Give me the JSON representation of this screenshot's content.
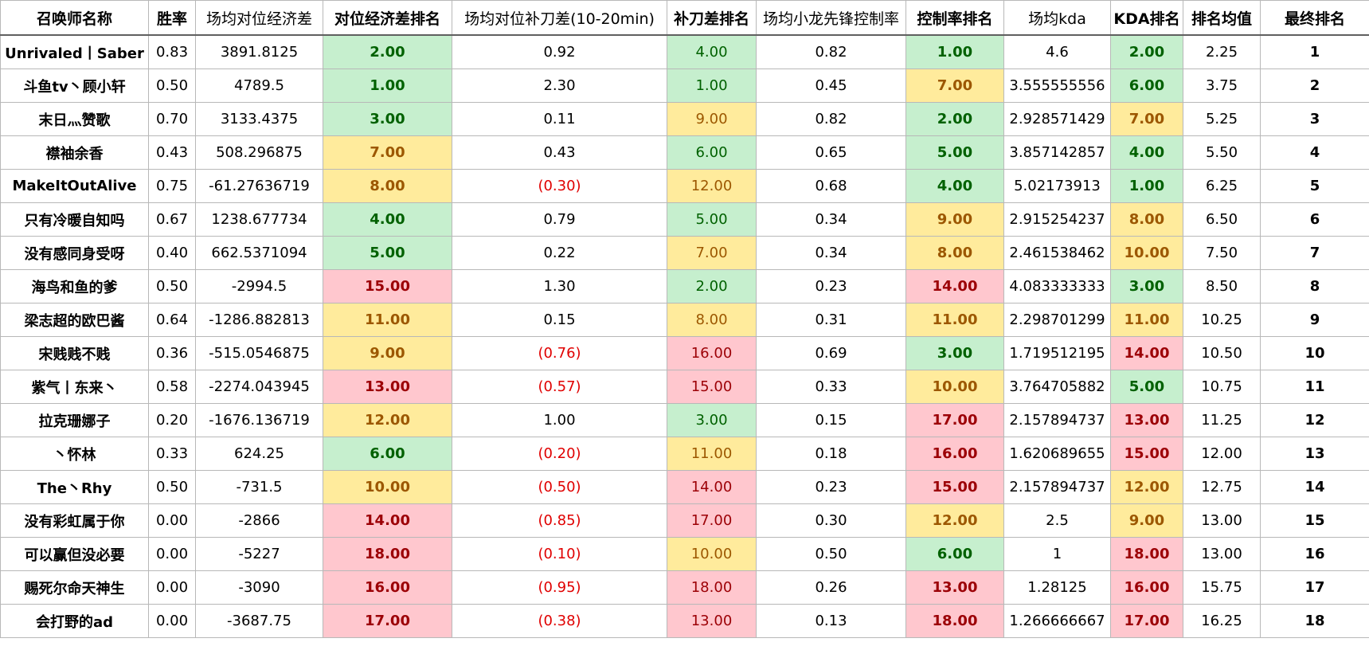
{
  "headers": [
    "召唤师名称",
    "胜率",
    "场均对位经济差",
    "对位经济差排名",
    "场均对位补刀差(10-20min)",
    "补刀差排名",
    "场均小龙先锋控制率",
    "控制率排名",
    "场均kda",
    "KDA排名",
    "排名均值",
    "最终排名"
  ],
  "colors": {
    "green_fill": "#c6efce",
    "green_text": "#006100",
    "yellow_fill": "#ffeb9c",
    "yellow_text": "#9c5700",
    "red_fill": "#ffc7ce",
    "red_text": "#9c0006",
    "negative_text": "#e00000"
  },
  "rows": [
    {
      "name": "Unrivaled丨Saber",
      "win": "0.83",
      "gold": "3891.8125",
      "gold_rank": "2.00",
      "cs": "0.92",
      "cs_rank": "4.00",
      "ctrl": "0.82",
      "ctrl_rank": "1.00",
      "kda": "4.6",
      "kda_rank": "2.00",
      "avg": "2.25",
      "final": "1"
    },
    {
      "name": "斗鱼tv丶顾小轩",
      "win": "0.50",
      "gold": "4789.5",
      "gold_rank": "1.00",
      "cs": "2.30",
      "cs_rank": "1.00",
      "ctrl": "0.45",
      "ctrl_rank": "7.00",
      "kda": "3.555555556",
      "kda_rank": "6.00",
      "avg": "3.75",
      "final": "2"
    },
    {
      "name": "末日灬赞歌",
      "win": "0.70",
      "gold": "3133.4375",
      "gold_rank": "3.00",
      "cs": "0.11",
      "cs_rank": "9.00",
      "ctrl": "0.82",
      "ctrl_rank": "2.00",
      "kda": "2.928571429",
      "kda_rank": "7.00",
      "avg": "5.25",
      "final": "3"
    },
    {
      "name": "襟袖余香",
      "win": "0.43",
      "gold": "508.296875",
      "gold_rank": "7.00",
      "cs": "0.43",
      "cs_rank": "6.00",
      "ctrl": "0.65",
      "ctrl_rank": "5.00",
      "kda": "3.857142857",
      "kda_rank": "4.00",
      "avg": "5.50",
      "final": "4"
    },
    {
      "name": "MakeItOutAlive",
      "win": "0.75",
      "gold": "-61.27636719",
      "gold_rank": "8.00",
      "cs": "(0.30)",
      "cs_rank": "12.00",
      "ctrl": "0.68",
      "ctrl_rank": "4.00",
      "kda": "5.02173913",
      "kda_rank": "1.00",
      "avg": "6.25",
      "final": "5"
    },
    {
      "name": "只有冷暖自知吗",
      "win": "0.67",
      "gold": "1238.677734",
      "gold_rank": "4.00",
      "cs": "0.79",
      "cs_rank": "5.00",
      "ctrl": "0.34",
      "ctrl_rank": "9.00",
      "kda": "2.915254237",
      "kda_rank": "8.00",
      "avg": "6.50",
      "final": "6"
    },
    {
      "name": "没有感同身受呀",
      "win": "0.40",
      "gold": "662.5371094",
      "gold_rank": "5.00",
      "cs": "0.22",
      "cs_rank": "7.00",
      "ctrl": "0.34",
      "ctrl_rank": "8.00",
      "kda": "2.461538462",
      "kda_rank": "10.00",
      "avg": "7.50",
      "final": "7"
    },
    {
      "name": "海鸟和鱼的爹",
      "win": "0.50",
      "gold": "-2994.5",
      "gold_rank": "15.00",
      "cs": "1.30",
      "cs_rank": "2.00",
      "ctrl": "0.23",
      "ctrl_rank": "14.00",
      "kda": "4.083333333",
      "kda_rank": "3.00",
      "avg": "8.50",
      "final": "8"
    },
    {
      "name": "梁志超的欧巴酱",
      "win": "0.64",
      "gold": "-1286.882813",
      "gold_rank": "11.00",
      "cs": "0.15",
      "cs_rank": "8.00",
      "ctrl": "0.31",
      "ctrl_rank": "11.00",
      "kda": "2.298701299",
      "kda_rank": "11.00",
      "avg": "10.25",
      "final": "9"
    },
    {
      "name": "宋贱贱不贱",
      "win": "0.36",
      "gold": "-515.0546875",
      "gold_rank": "9.00",
      "cs": "(0.76)",
      "cs_rank": "16.00",
      "ctrl": "0.69",
      "ctrl_rank": "3.00",
      "kda": "1.719512195",
      "kda_rank": "14.00",
      "avg": "10.50",
      "final": "10"
    },
    {
      "name": "紫气丨东来丶",
      "win": "0.58",
      "gold": "-2274.043945",
      "gold_rank": "13.00",
      "cs": "(0.57)",
      "cs_rank": "15.00",
      "ctrl": "0.33",
      "ctrl_rank": "10.00",
      "kda": "3.764705882",
      "kda_rank": "5.00",
      "avg": "10.75",
      "final": "11"
    },
    {
      "name": "拉克珊娜子",
      "win": "0.20",
      "gold": "-1676.136719",
      "gold_rank": "12.00",
      "cs": "1.00",
      "cs_rank": "3.00",
      "ctrl": "0.15",
      "ctrl_rank": "17.00",
      "kda": "2.157894737",
      "kda_rank": "13.00",
      "avg": "11.25",
      "final": "12"
    },
    {
      "name": "丶怀林",
      "win": "0.33",
      "gold": "624.25",
      "gold_rank": "6.00",
      "cs": "(0.20)",
      "cs_rank": "11.00",
      "ctrl": "0.18",
      "ctrl_rank": "16.00",
      "kda": "1.620689655",
      "kda_rank": "15.00",
      "avg": "12.00",
      "final": "13"
    },
    {
      "name": "The丶Rhy",
      "win": "0.50",
      "gold": "-731.5",
      "gold_rank": "10.00",
      "cs": "(0.50)",
      "cs_rank": "14.00",
      "ctrl": "0.23",
      "ctrl_rank": "15.00",
      "kda": "2.157894737",
      "kda_rank": "12.00",
      "avg": "12.75",
      "final": "14"
    },
    {
      "name": "没有彩虹属于你",
      "win": "0.00",
      "gold": "-2866",
      "gold_rank": "14.00",
      "cs": "(0.85)",
      "cs_rank": "17.00",
      "ctrl": "0.30",
      "ctrl_rank": "12.00",
      "kda": "2.5",
      "kda_rank": "9.00",
      "avg": "13.00",
      "final": "15"
    },
    {
      "name": "可以赢但没必要",
      "win": "0.00",
      "gold": "-5227",
      "gold_rank": "18.00",
      "cs": "(0.10)",
      "cs_rank": "10.00",
      "ctrl": "0.50",
      "ctrl_rank": "6.00",
      "kda": "1",
      "kda_rank": "18.00",
      "avg": "13.00",
      "final": "16"
    },
    {
      "name": "赐死尔命天神生",
      "win": "0.00",
      "gold": "-3090",
      "gold_rank": "16.00",
      "cs": "(0.95)",
      "cs_rank": "18.00",
      "ctrl": "0.26",
      "ctrl_rank": "13.00",
      "kda": "1.28125",
      "kda_rank": "16.00",
      "avg": "15.75",
      "final": "17"
    },
    {
      "name": "会打野的ad",
      "win": "0.00",
      "gold": "-3687.75",
      "gold_rank": "17.00",
      "cs": "(0.38)",
      "cs_rank": "13.00",
      "ctrl": "0.13",
      "ctrl_rank": "18.00",
      "kda": "1.266666667",
      "kda_rank": "17.00",
      "avg": "16.25",
      "final": "18"
    }
  ]
}
